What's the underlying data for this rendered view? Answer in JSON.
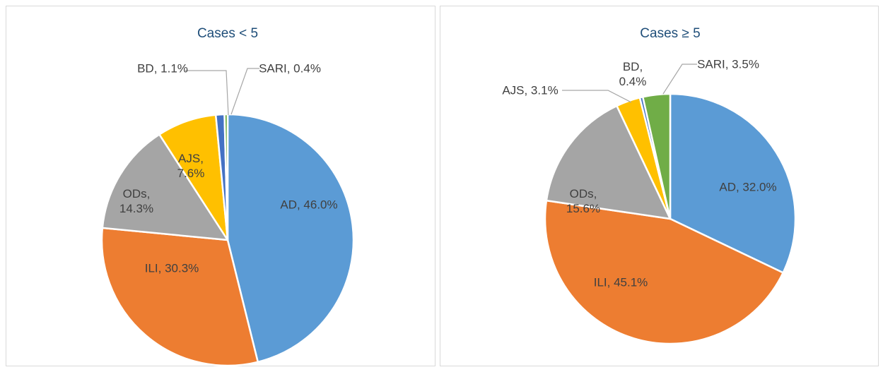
{
  "chart_data": [
    {
      "type": "pie",
      "title": "Cases < 5",
      "values": [
        46.0,
        30.3,
        14.3,
        7.6,
        1.1,
        0.4
      ],
      "value_labels": [
        "AD, 46.0%",
        "ILI, 30.3%",
        "ODs, 14.3%",
        "AJS, 7.6%",
        "BD, 1.1%",
        "SARI, 0.4%"
      ],
      "colors": [
        "#5b9bd5",
        "#ed7d31",
        "#a5a5a5",
        "#ffc000",
        "#4472c4",
        "#70ad47"
      ]
    },
    {
      "type": "pie",
      "title": "Cases  ≥ 5",
      "values": [
        32.0,
        45.1,
        15.6,
        3.1,
        0.4,
        3.5
      ],
      "value_labels": [
        "AD, 32.0%",
        "ILI, 45.1%",
        "ODs, 15.6%",
        "AJS, 3.1%",
        "BD, 0.4%",
        "SARI, 3.5%"
      ],
      "colors": [
        "#5b9bd5",
        "#ed7d31",
        "#a5a5a5",
        "#ffc000",
        "#4472c4",
        "#70ad47"
      ]
    }
  ]
}
